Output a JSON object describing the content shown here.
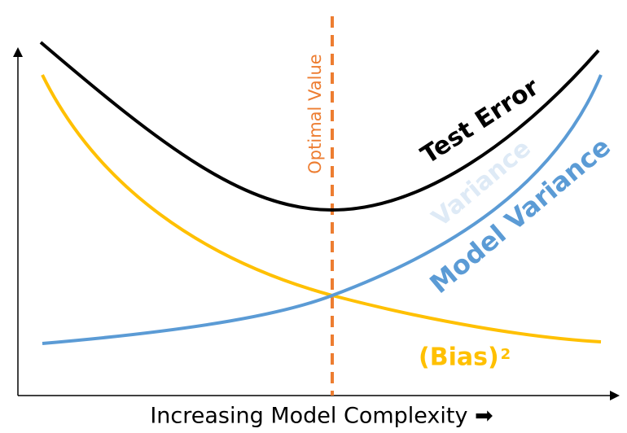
{
  "diagram": {
    "optimal_label": "Optimal Value",
    "test_error_label": "Test Error",
    "variance_ghost_label": "Variance",
    "model_variance_label": "Model Variance",
    "bias_label": "(Bias)",
    "bias_exponent": "2",
    "x_axis_label": "Increasing Model Complexity ➡"
  }
}
